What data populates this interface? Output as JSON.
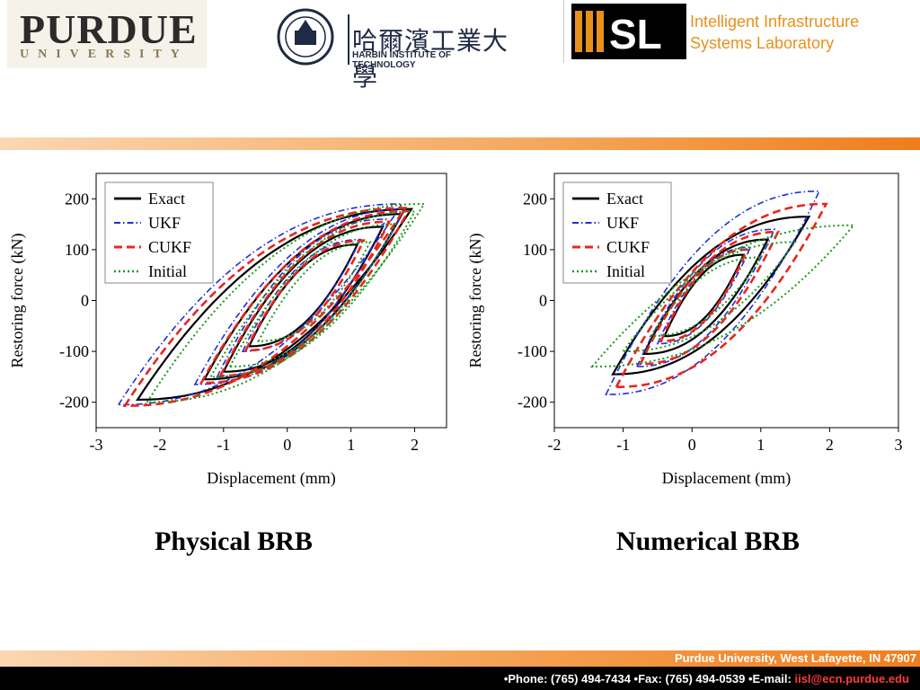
{
  "header": {
    "purdue_name": "PURDUE",
    "purdue_sub": "UNIVERSITY",
    "hit_cn": "哈爾濱工業大學",
    "hit_en": "HARBIN INSTITUTE OF TECHNOLOGY",
    "isl_line1": "Intelligent Infrastructure",
    "isl_line2": "Systems Laboratory"
  },
  "colors": {
    "accent_orange": "#f07d1c",
    "exact": "#000000",
    "ukf": "#1f2fd6",
    "cukf": "#e8261c",
    "initial": "#1a9a1a"
  },
  "chart_data": [
    {
      "type": "line",
      "caption": "Physical BRB",
      "xlabel": "Displacement (mm)",
      "ylabel": "Restoring force (kN)",
      "xlim": [
        -3,
        2.5
      ],
      "ylim": [
        -250,
        250
      ],
      "xticks": [
        -3,
        -2,
        -1,
        0,
        1,
        2
      ],
      "yticks": [
        -200,
        -100,
        0,
        100,
        200
      ],
      "legend": [
        "Exact",
        "UKF",
        "CUKF",
        "Initial"
      ],
      "legend_position": "top-left",
      "series": [
        {
          "name": "Exact",
          "style": "solid",
          "cycles": [
            {
              "xmin": -2.35,
              "xmax": 1.95,
              "fmin": -195,
              "fmax": 180
            },
            {
              "xmin": -1.0,
              "xmax": 1.5,
              "fmin": -140,
              "fmax": 145
            },
            {
              "xmin": -0.6,
              "xmax": 1.1,
              "fmin": -90,
              "fmax": 110
            },
            {
              "xmin": -1.3,
              "xmax": 1.8,
              "fmin": -155,
              "fmax": 170
            }
          ]
        },
        {
          "name": "UKF",
          "style": "dashdot",
          "cycles": [
            {
              "xmin": -2.65,
              "xmax": 1.8,
              "fmin": -205,
              "fmax": 190
            },
            {
              "xmin": -1.1,
              "xmax": 1.55,
              "fmin": -150,
              "fmax": 160
            },
            {
              "xmin": -0.7,
              "xmax": 1.15,
              "fmin": -100,
              "fmax": 120
            },
            {
              "xmin": -1.45,
              "xmax": 1.85,
              "fmin": -165,
              "fmax": 180
            }
          ]
        },
        {
          "name": "CUKF",
          "style": "dash",
          "cycles": [
            {
              "xmin": -2.55,
              "xmax": 1.85,
              "fmin": -207,
              "fmax": 182
            },
            {
              "xmin": -1.05,
              "xmax": 1.6,
              "fmin": -148,
              "fmax": 155
            },
            {
              "xmin": -0.65,
              "xmax": 1.2,
              "fmin": -98,
              "fmax": 118
            },
            {
              "xmin": -1.35,
              "xmax": 1.9,
              "fmin": -162,
              "fmax": 176
            }
          ]
        },
        {
          "name": "Initial",
          "style": "dot",
          "cycles": [
            {
              "xmin": -2.2,
              "xmax": 2.15,
              "fmin": -200,
              "fmax": 190
            },
            {
              "xmin": -0.9,
              "xmax": 1.7,
              "fmin": -130,
              "fmax": 150
            },
            {
              "xmin": -0.45,
              "xmax": 1.3,
              "fmin": -80,
              "fmax": 115
            },
            {
              "xmin": -1.2,
              "xmax": 2.0,
              "fmin": -150,
              "fmax": 175
            }
          ]
        }
      ]
    },
    {
      "type": "line",
      "caption": "Numerical BRB",
      "xlabel": "Displacement (mm)",
      "ylabel": "Restoring force (kN)",
      "xlim": [
        -2,
        3
      ],
      "ylim": [
        -250,
        250
      ],
      "xticks": [
        -2,
        -1,
        0,
        1,
        2,
        3
      ],
      "yticks": [
        -200,
        -100,
        0,
        100,
        200
      ],
      "legend": [
        "Exact",
        "UKF",
        "CUKF",
        "Initial"
      ],
      "legend_position": "top-left",
      "series": [
        {
          "name": "Exact",
          "style": "solid",
          "cycles": [
            {
              "xmin": -1.15,
              "xmax": 1.7,
              "fmin": -145,
              "fmax": 165
            },
            {
              "xmin": -0.7,
              "xmax": 1.1,
              "fmin": -105,
              "fmax": 120
            },
            {
              "xmin": -0.4,
              "xmax": 0.75,
              "fmin": -70,
              "fmax": 90
            }
          ]
        },
        {
          "name": "UKF",
          "style": "dashdot",
          "cycles": [
            {
              "xmin": -1.25,
              "xmax": 1.85,
              "fmin": -185,
              "fmax": 215
            },
            {
              "xmin": -0.8,
              "xmax": 1.2,
              "fmin": -130,
              "fmax": 140
            },
            {
              "xmin": -0.5,
              "xmax": 0.85,
              "fmin": -85,
              "fmax": 105
            }
          ]
        },
        {
          "name": "CUKF",
          "style": "dash",
          "cycles": [
            {
              "xmin": -1.1,
              "xmax": 1.95,
              "fmin": -170,
              "fmax": 190
            },
            {
              "xmin": -0.75,
              "xmax": 1.25,
              "fmin": -125,
              "fmax": 135
            },
            {
              "xmin": -0.45,
              "xmax": 0.8,
              "fmin": -80,
              "fmax": 100
            }
          ]
        },
        {
          "name": "Initial",
          "style": "dot",
          "cycles": [
            {
              "xmin": -1.45,
              "xmax": 2.35,
              "fmin": -130,
              "fmax": 148
            },
            {
              "xmin": -1.0,
              "xmax": 1.5,
              "fmin": -100,
              "fmax": 115
            },
            {
              "xmin": -0.6,
              "xmax": 1.0,
              "fmin": -70,
              "fmax": 85
            }
          ]
        }
      ]
    }
  ],
  "footer": {
    "address": "Purdue University, West Lafayette, IN 47907",
    "contact": "•Phone: (765) 494-7434 •Fax: (765) 494-0539 •E-mail: ",
    "email": "iisl@ecn.purdue.edu"
  }
}
